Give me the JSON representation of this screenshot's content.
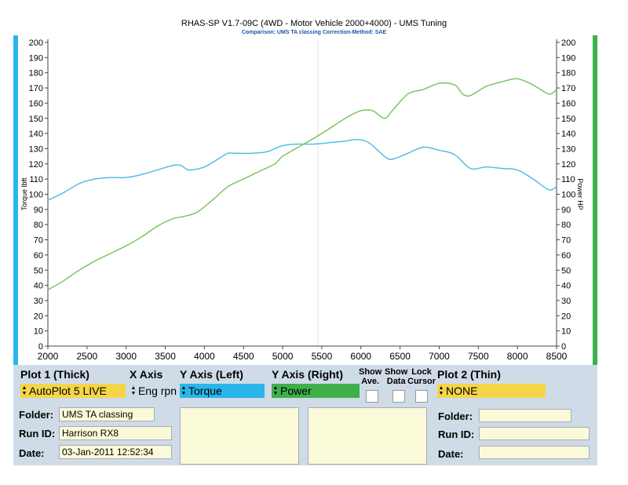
{
  "header": {
    "title": "RHAS-SP V1.7-09C  (4WD - Motor Vehicle 2000+4000) - UMS Tuning",
    "subtitle": "Comparison: UMS TA classing    Correction-Method: SAE"
  },
  "colors": {
    "torque": "#4ab8e6",
    "power": "#72c25a",
    "plot1_select": "#f5d548",
    "torque_select": "#29b6ea",
    "power_select": "#3db04a",
    "panel": "#cfdbe7",
    "field": "#fbfad8"
  },
  "chart_data": {
    "type": "line",
    "xlabel": "",
    "ylabel_left": "Torque lbft",
    "ylabel_right": "Power HP",
    "xlim": [
      2000,
      8500
    ],
    "ylim": [
      0,
      200
    ],
    "y2lim": [
      0,
      200
    ],
    "x_ticks": [
      "2000",
      "2500",
      "3000",
      "3500",
      "4000",
      "4500",
      "5000",
      "5500",
      "6000",
      "6500",
      "7000",
      "7500",
      "8000",
      "8500"
    ],
    "y_ticks": [
      "0",
      "10",
      "20",
      "30",
      "40",
      "50",
      "60",
      "70",
      "80",
      "90",
      "100",
      "110",
      "120",
      "130",
      "140",
      "150",
      "160",
      "170",
      "180",
      "190",
      "200"
    ],
    "grid": false,
    "series": [
      {
        "name": "Torque",
        "axis": "left",
        "color": "#4ab8e6",
        "x": [
          2000,
          2200,
          2400,
          2600,
          2800,
          3000,
          3200,
          3400,
          3600,
          3700,
          3800,
          4000,
          4200,
          4300,
          4400,
          4600,
          4800,
          5000,
          5200,
          5400,
          5600,
          5800,
          5950,
          6100,
          6300,
          6400,
          6600,
          6800,
          7000,
          7200,
          7400,
          7600,
          7800,
          8000,
          8200,
          8400,
          8500
        ],
        "values": [
          96,
          101,
          107,
          110,
          111,
          111,
          113,
          116,
          119,
          119,
          116,
          118,
          124,
          127,
          127,
          127,
          128,
          132,
          133,
          133,
          134,
          135,
          136,
          134,
          125,
          123,
          127,
          131,
          129,
          126,
          117,
          118,
          117,
          116,
          110,
          103,
          105
        ]
      },
      {
        "name": "Power",
        "axis": "right",
        "color": "#72c25a",
        "x": [
          2000,
          2200,
          2400,
          2600,
          2800,
          3000,
          3200,
          3400,
          3600,
          3700,
          3900,
          4100,
          4300,
          4500,
          4700,
          4900,
          5000,
          5200,
          5500,
          5800,
          6000,
          6150,
          6300,
          6400,
          6600,
          6800,
          7000,
          7200,
          7300,
          7400,
          7600,
          7800,
          8000,
          8200,
          8400,
          8500
        ],
        "values": [
          37,
          43,
          50,
          56,
          61,
          66,
          72,
          79,
          84,
          85,
          88,
          96,
          105,
          110,
          115,
          120,
          125,
          131,
          140,
          150,
          155,
          155,
          150,
          155,
          166,
          169,
          173,
          172,
          166,
          165,
          171,
          174,
          176,
          172,
          166,
          169
        ]
      }
    ]
  },
  "panel": {
    "plot1": {
      "label": "Plot 1 (Thick)",
      "value": "AutoPlot 5 LIVE"
    },
    "xaxis": {
      "label": "X Axis",
      "value": "Eng rpn"
    },
    "yleft": {
      "label": "Y Axis (Left)",
      "value": "Torque"
    },
    "yright": {
      "label": "Y Axis (Right)",
      "value": "Power"
    },
    "show_ave": {
      "line1": "Show",
      "line2": "Ave."
    },
    "show_data": {
      "line1": "Show",
      "line2": "Data"
    },
    "lock_cursor": {
      "line1": "Lock",
      "line2": "Cursor"
    },
    "plot2": {
      "label": "Plot 2 (Thin)",
      "value": "NONE"
    },
    "left_fields": {
      "folder": {
        "label": "Folder:",
        "value": "UMS TA classing"
      },
      "run_id": {
        "label": "Run ID:",
        "value": "Harrison RX8"
      },
      "date": {
        "label": "Date:",
        "value": "03-Jan-2011  12:52:34"
      }
    },
    "right_fields": {
      "folder": {
        "label": "Folder:",
        "value": ""
      },
      "run_id": {
        "label": "Run ID:",
        "value": ""
      },
      "date": {
        "label": "Date:",
        "value": ""
      }
    }
  }
}
